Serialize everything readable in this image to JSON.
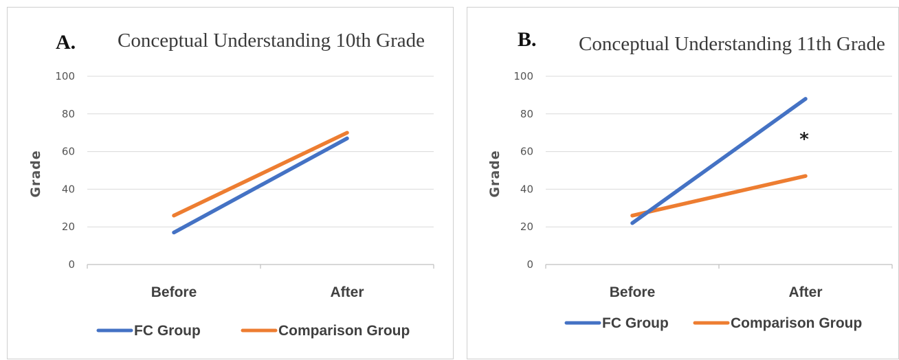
{
  "chart_data": [
    {
      "type": "line",
      "panel_label": "A.",
      "title": "Conceptual Understanding 10th Grade",
      "xlabel": "",
      "ylabel": "Grade",
      "categories": [
        "Before",
        "After"
      ],
      "yticks": [
        "0",
        "20",
        "40",
        "60",
        "80",
        "100"
      ],
      "ylim": [
        0,
        100
      ],
      "grid": true,
      "legend_position": "bottom",
      "series": [
        {
          "name": "FC Group",
          "values": [
            17,
            67
          ],
          "color": "#4472C4"
        },
        {
          "name": "Comparison Group",
          "values": [
            26,
            70
          ],
          "color": "#ED7D31"
        }
      ],
      "annotation": ""
    },
    {
      "type": "line",
      "panel_label": "B.",
      "title": "Conceptual Understanding 11th Grade",
      "xlabel": "",
      "ylabel": "Grade",
      "categories": [
        "Before",
        "After"
      ],
      "yticks": [
        "0",
        "20",
        "40",
        "60",
        "80",
        "100"
      ],
      "ylim": [
        0,
        100
      ],
      "grid": true,
      "legend_position": "bottom",
      "series": [
        {
          "name": "FC Group",
          "values": [
            22,
            88
          ],
          "color": "#4472C4"
        },
        {
          "name": "Comparison Group",
          "values": [
            26,
            47
          ],
          "color": "#ED7D31"
        }
      ],
      "annotation": "*"
    }
  ]
}
